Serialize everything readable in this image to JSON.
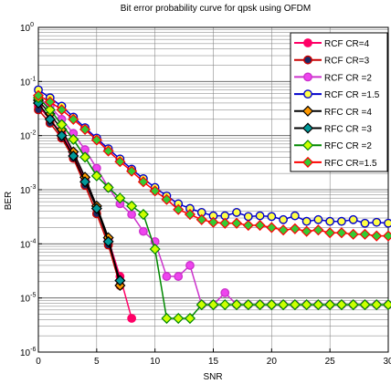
{
  "chart_data": {
    "type": "line",
    "title": "Bit error probability curve for qpsk using OFDM",
    "xlabel": "SNR",
    "ylabel": "BER",
    "xlim": [
      0,
      30
    ],
    "ylim_exponents": [
      -6,
      0
    ],
    "yscale": "log",
    "x_ticks": [
      0,
      5,
      10,
      15,
      20,
      25,
      30
    ],
    "x_tick_labels": [
      "0",
      "5",
      "10",
      "15",
      "20",
      "25",
      "30"
    ],
    "y_tick_exponents": [
      0,
      -1,
      -2,
      -3,
      -4,
      -5,
      -6
    ],
    "grid": true,
    "legend_position": "top-right",
    "series": [
      {
        "name": "RCF CR=4",
        "color": "#ff0066",
        "marker": "circle",
        "fill": "#ff0066",
        "x": [
          0,
          1,
          2,
          3,
          4,
          5,
          6,
          7,
          8
        ],
        "y": [
          0.035,
          0.02,
          0.011,
          0.0045,
          0.0015,
          0.00045,
          0.00012,
          2.5e-05,
          4.2e-06
        ]
      },
      {
        "name": "RCF  CR=3",
        "color": "#cc0000",
        "marker": "circle",
        "fill": "#1a2a66",
        "x": [
          0,
          1,
          2,
          3,
          4,
          5,
          6,
          7
        ],
        "y": [
          0.03,
          0.017,
          0.009,
          0.0038,
          0.0012,
          0.00036,
          9.5e-05,
          1.7e-05
        ]
      },
      {
        "name": "RCF CR =2",
        "color": "#cc33cc",
        "marker": "circle",
        "fill": "#ee44ee",
        "x": [
          0,
          1,
          2,
          3,
          4,
          5,
          6,
          7,
          8,
          9,
          10,
          11,
          12,
          13,
          14,
          15,
          16,
          17,
          18,
          19,
          20,
          21,
          22,
          23,
          24,
          25,
          26,
          27,
          28,
          29,
          30
        ],
        "y": [
          0.05,
          0.035,
          0.02,
          0.011,
          0.0055,
          0.0025,
          0.0011,
          0.00055,
          0.00035,
          0.00017,
          0.00011,
          2.5e-05,
          2.5e-05,
          4e-05,
          7.5e-06,
          7.5e-06,
          1.25e-05,
          7.5e-06,
          7.5e-06,
          7.5e-06,
          7.5e-06,
          7.5e-06,
          7.5e-06,
          7.5e-06,
          7.5e-06,
          7.5e-06,
          7.5e-06,
          7.5e-06,
          7.5e-06,
          7.5e-06,
          7.5e-06
        ]
      },
      {
        "name": "RCF CR =1.5",
        "color": "#0000cc",
        "marker": "circle",
        "fill": "#ffff44",
        "x": [
          0,
          1,
          2,
          3,
          4,
          5,
          6,
          7,
          8,
          9,
          10,
          11,
          12,
          13,
          14,
          15,
          16,
          17,
          18,
          19,
          20,
          21,
          22,
          23,
          24,
          25,
          26,
          27,
          28,
          29,
          30
        ],
        "y": [
          0.07,
          0.05,
          0.035,
          0.022,
          0.014,
          0.009,
          0.0057,
          0.0037,
          0.0024,
          0.0016,
          0.0011,
          0.00077,
          0.00055,
          0.00045,
          0.00038,
          0.00033,
          0.00033,
          0.00038,
          0.00032,
          0.00033,
          0.00032,
          0.00028,
          0.00033,
          0.00026,
          0.00028,
          0.00026,
          0.00026,
          0.00028,
          0.00024,
          0.00025,
          0.00024
        ]
      },
      {
        "name": "RFC CR =4",
        "color": "#000000",
        "marker": "diamond",
        "fill": "#ff9900",
        "x": [
          0,
          1,
          2,
          3,
          4,
          5,
          6,
          7
        ],
        "y": [
          0.045,
          0.025,
          0.013,
          0.005,
          0.0017,
          0.0005,
          0.00013,
          1.7e-05
        ]
      },
      {
        "name": "RFC CR =3",
        "color": "#000000",
        "marker": "diamond",
        "fill": "#009999",
        "x": [
          0,
          1,
          2,
          3,
          4,
          5,
          6,
          7
        ],
        "y": [
          0.04,
          0.02,
          0.01,
          0.0042,
          0.0014,
          0.00045,
          0.00011,
          2.1e-05
        ]
      },
      {
        "name": "RFC CR =2",
        "color": "#008800",
        "marker": "diamond",
        "fill": "#ccff00",
        "x": [
          0,
          1,
          2,
          3,
          4,
          5,
          6,
          7,
          8,
          9,
          10,
          11,
          12,
          13,
          14,
          15,
          16,
          17,
          18,
          19,
          20,
          21,
          22,
          23,
          24,
          25,
          26,
          27,
          28,
          29,
          30
        ],
        "y": [
          0.05,
          0.03,
          0.016,
          0.0085,
          0.004,
          0.0018,
          0.0011,
          0.0007,
          0.0005,
          0.00035,
          8e-05,
          4.2e-06,
          4.2e-06,
          4.2e-06,
          7.5e-06,
          7.5e-06,
          7.5e-06,
          7.5e-06,
          7.5e-06,
          7.5e-06,
          7.5e-06,
          7.5e-06,
          7.5e-06,
          7.5e-06,
          7.5e-06,
          7.5e-06,
          7.5e-06,
          7.5e-06,
          7.5e-06,
          7.5e-06,
          7.5e-06
        ]
      },
      {
        "name": "RFC CR=1.5",
        "color": "#ff0000",
        "marker": "diamond",
        "fill": "#33cc33",
        "x": [
          0,
          1,
          2,
          3,
          4,
          5,
          6,
          7,
          8,
          9,
          10,
          11,
          12,
          13,
          14,
          15,
          16,
          17,
          18,
          19,
          20,
          21,
          22,
          23,
          24,
          25,
          26,
          27,
          28,
          29,
          30
        ],
        "y": [
          0.055,
          0.042,
          0.03,
          0.02,
          0.013,
          0.0083,
          0.0052,
          0.0033,
          0.0022,
          0.0014,
          0.00095,
          0.00066,
          0.00043,
          0.00035,
          0.00028,
          0.00025,
          0.00024,
          0.00024,
          0.00022,
          0.00022,
          0.0002,
          0.00018,
          0.00019,
          0.00017,
          0.00018,
          0.00016,
          0.00016,
          0.00015,
          0.00015,
          0.00014,
          0.00014
        ]
      }
    ]
  }
}
